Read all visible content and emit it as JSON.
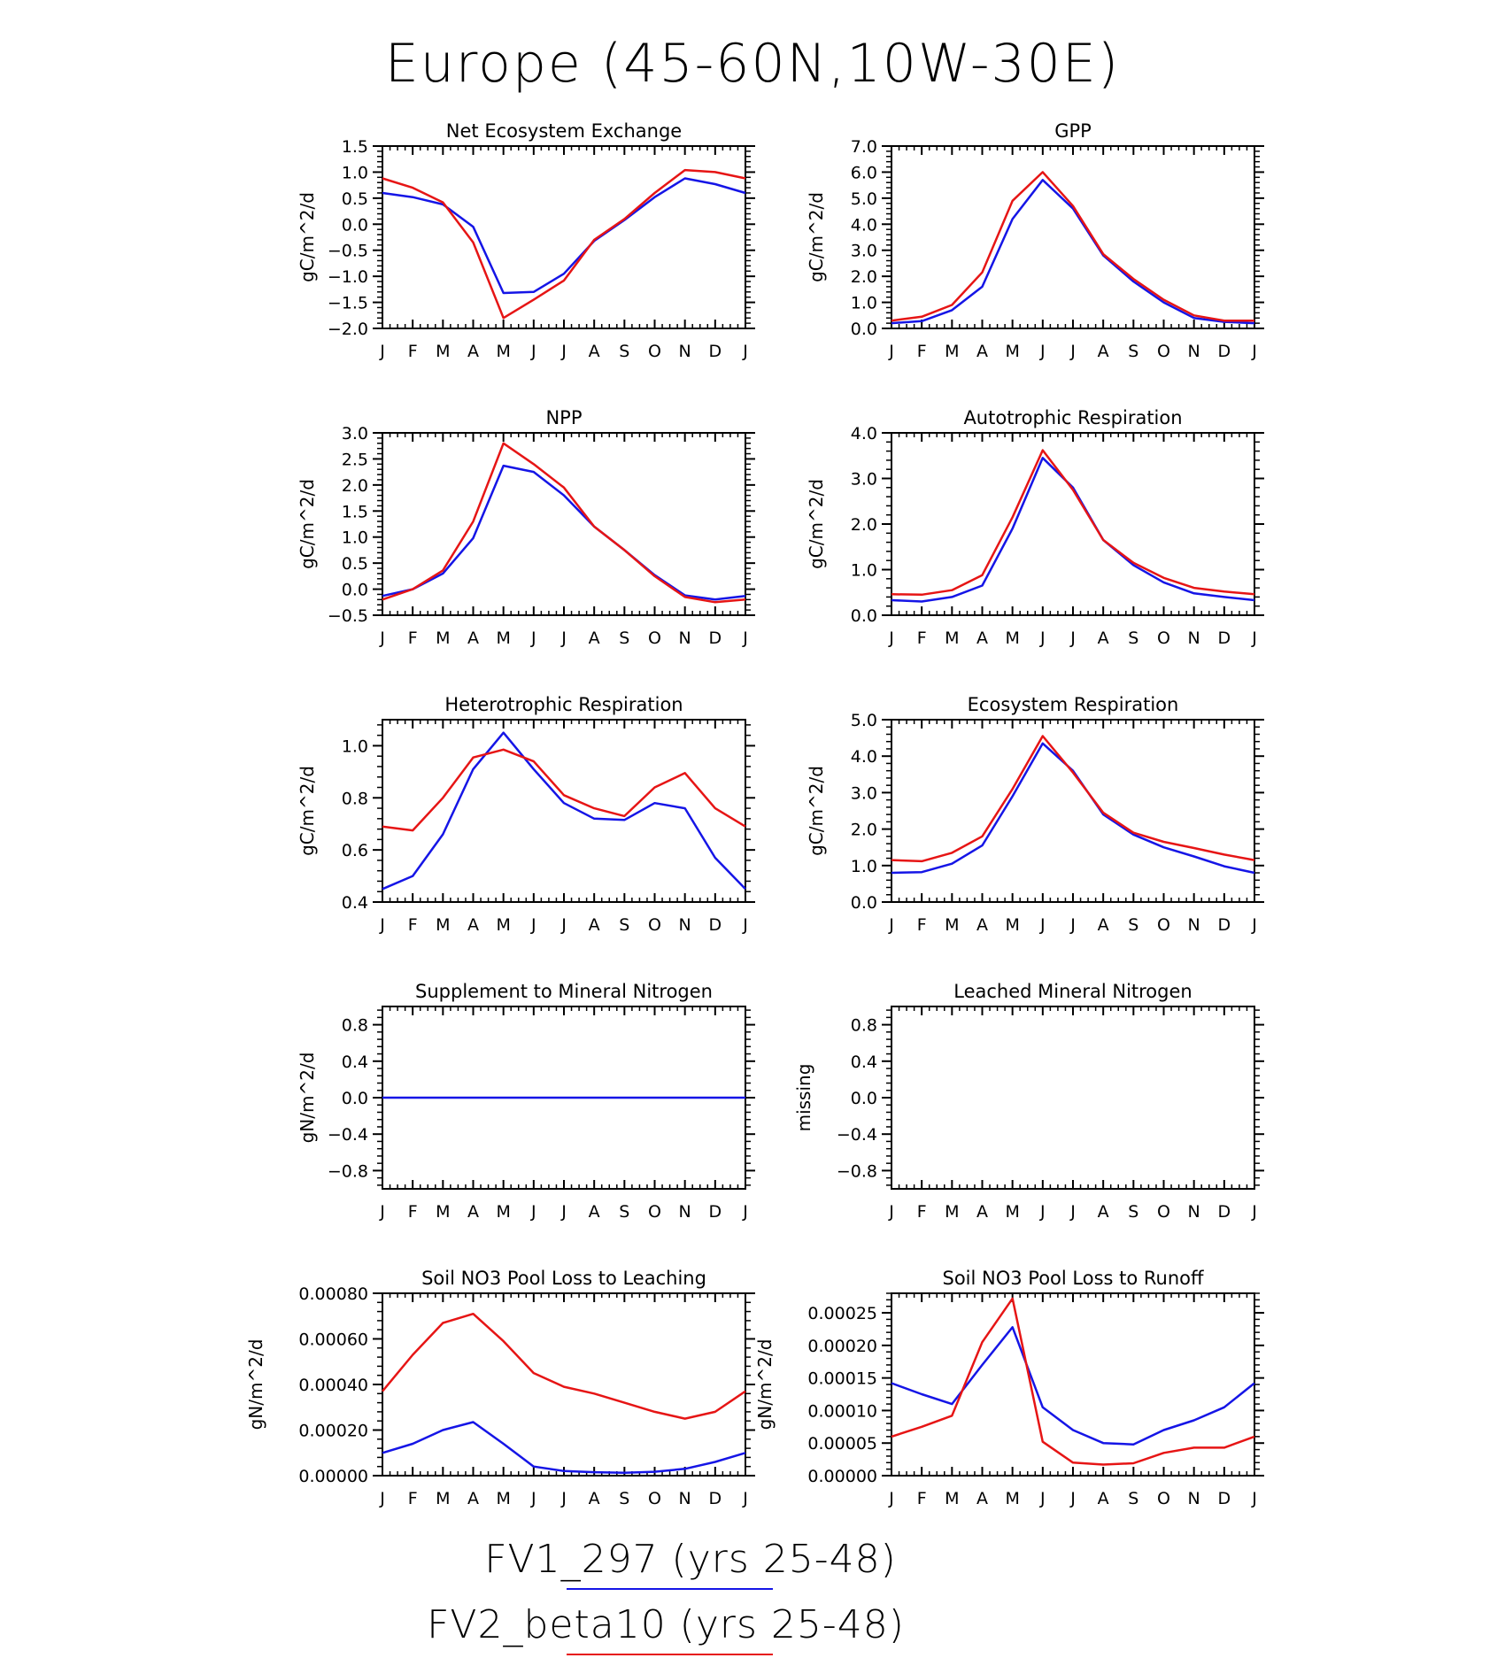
{
  "title": "Europe (45-60N,10W-30E)",
  "colors": {
    "series1": "#1515e6",
    "series2": "#e61515",
    "axis": "#000000"
  },
  "legend": [
    {
      "label": "FV1_297 (yrs 25-48)",
      "color": "#1515e6"
    },
    {
      "label": "FV2_beta10 (yrs 25-48)",
      "color": "#e61515"
    }
  ],
  "chart_data": [
    {
      "type": "line",
      "title": "Net Ecosystem Exchange",
      "ylabel": "gC/m^2/d",
      "categories": [
        "J",
        "F",
        "M",
        "A",
        "M",
        "J",
        "J",
        "A",
        "S",
        "O",
        "N",
        "D",
        "J"
      ],
      "ylim": [
        -2.0,
        1.5
      ],
      "yticks": [
        -2.0,
        -1.5,
        -1.0,
        -0.5,
        0.0,
        0.5,
        1.0,
        1.5
      ],
      "ytick_labels": [
        "−2.0",
        "−1.5",
        "−1.0",
        "−0.5",
        "0.0",
        "0.5",
        "1.0",
        "1.5"
      ],
      "series": [
        {
          "name": "FV1_297 (yrs 25-48)",
          "values": [
            0.6,
            0.52,
            0.38,
            -0.05,
            -1.32,
            -1.3,
            -0.95,
            -0.32,
            0.08,
            0.52,
            0.88,
            0.77,
            0.6
          ]
        },
        {
          "name": "FV2_beta10 (yrs 25-48)",
          "values": [
            0.88,
            0.7,
            0.42,
            -0.35,
            -1.8,
            -1.45,
            -1.08,
            -0.3,
            0.1,
            0.6,
            1.04,
            1.0,
            0.88
          ]
        }
      ]
    },
    {
      "type": "line",
      "title": "GPP",
      "ylabel": "gC/m^2/d",
      "categories": [
        "J",
        "F",
        "M",
        "A",
        "M",
        "J",
        "J",
        "A",
        "S",
        "O",
        "N",
        "D",
        "J"
      ],
      "ylim": [
        0.0,
        7.0
      ],
      "yticks": [
        0,
        1,
        2,
        3,
        4,
        5,
        6,
        7
      ],
      "ytick_labels": [
        "0.0",
        "1.0",
        "2.0",
        "3.0",
        "4.0",
        "5.0",
        "6.0",
        "7.0"
      ],
      "series": [
        {
          "name": "FV1_297 (yrs 25-48)",
          "values": [
            0.2,
            0.28,
            0.7,
            1.6,
            4.2,
            5.7,
            4.6,
            2.8,
            1.8,
            1.0,
            0.4,
            0.25,
            0.2
          ]
        },
        {
          "name": "FV2_beta10 (yrs 25-48)",
          "values": [
            0.3,
            0.45,
            0.9,
            2.15,
            4.9,
            6.0,
            4.7,
            2.85,
            1.9,
            1.1,
            0.5,
            0.3,
            0.3
          ]
        }
      ]
    },
    {
      "type": "line",
      "title": "NPP",
      "ylabel": "gC/m^2/d",
      "categories": [
        "J",
        "F",
        "M",
        "A",
        "M",
        "J",
        "J",
        "A",
        "S",
        "O",
        "N",
        "D",
        "J"
      ],
      "ylim": [
        -0.5,
        3.0
      ],
      "yticks": [
        -0.5,
        0,
        0.5,
        1,
        1.5,
        2,
        2.5,
        3
      ],
      "ytick_labels": [
        "−0.5",
        "0.0",
        "0.5",
        "1.0",
        "1.5",
        "2.0",
        "2.5",
        "3.0"
      ],
      "series": [
        {
          "name": "FV1_297 (yrs 25-48)",
          "values": [
            -0.13,
            0.0,
            0.3,
            0.98,
            2.37,
            2.25,
            1.8,
            1.2,
            0.75,
            0.27,
            -0.12,
            -0.2,
            -0.13
          ]
        },
        {
          "name": "FV2_beta10 (yrs 25-48)",
          "values": [
            -0.2,
            0.0,
            0.36,
            1.3,
            2.8,
            2.4,
            1.95,
            1.2,
            0.75,
            0.25,
            -0.15,
            -0.25,
            -0.2
          ]
        }
      ]
    },
    {
      "type": "line",
      "title": "Autotrophic Respiration",
      "ylabel": "gC/m^2/d",
      "categories": [
        "J",
        "F",
        "M",
        "A",
        "M",
        "J",
        "J",
        "A",
        "S",
        "O",
        "N",
        "D",
        "J"
      ],
      "ylim": [
        0.0,
        4.0
      ],
      "yticks": [
        0,
        1,
        2,
        3,
        4
      ],
      "ytick_labels": [
        "0.0",
        "1.0",
        "2.0",
        "3.0",
        "4.0"
      ],
      "series": [
        {
          "name": "FV1_297 (yrs 25-48)",
          "values": [
            0.33,
            0.3,
            0.4,
            0.65,
            1.9,
            3.45,
            2.8,
            1.65,
            1.1,
            0.72,
            0.48,
            0.4,
            0.33
          ]
        },
        {
          "name": "FV2_beta10 (yrs 25-48)",
          "values": [
            0.46,
            0.45,
            0.55,
            0.88,
            2.15,
            3.62,
            2.75,
            1.65,
            1.15,
            0.82,
            0.6,
            0.52,
            0.46
          ]
        }
      ]
    },
    {
      "type": "line",
      "title": "Heterotrophic Respiration",
      "ylabel": "gC/m^2/d",
      "categories": [
        "J",
        "F",
        "M",
        "A",
        "M",
        "J",
        "J",
        "A",
        "S",
        "O",
        "N",
        "D",
        "J"
      ],
      "ylim": [
        0.4,
        1.1
      ],
      "yticks": [
        0.4,
        0.6,
        0.8,
        1.0
      ],
      "ytick_labels": [
        "0.4",
        "0.6",
        "0.8",
        "1.0"
      ],
      "series": [
        {
          "name": "FV1_297 (yrs 25-48)",
          "values": [
            0.45,
            0.5,
            0.66,
            0.91,
            1.05,
            0.91,
            0.78,
            0.72,
            0.715,
            0.78,
            0.76,
            0.57,
            0.45
          ]
        },
        {
          "name": "FV2_beta10 (yrs 25-48)",
          "values": [
            0.69,
            0.675,
            0.8,
            0.955,
            0.985,
            0.94,
            0.81,
            0.76,
            0.73,
            0.84,
            0.895,
            0.76,
            0.69
          ]
        }
      ]
    },
    {
      "type": "line",
      "title": "Ecosystem Respiration",
      "ylabel": "gC/m^2/d",
      "categories": [
        "J",
        "F",
        "M",
        "A",
        "M",
        "J",
        "J",
        "A",
        "S",
        "O",
        "N",
        "D",
        "J"
      ],
      "ylim": [
        0.0,
        5.0
      ],
      "yticks": [
        0,
        1,
        2,
        3,
        4,
        5
      ],
      "ytick_labels": [
        "0.0",
        "1.0",
        "2.0",
        "3.0",
        "4.0",
        "5.0"
      ],
      "series": [
        {
          "name": "FV1_297 (yrs 25-48)",
          "values": [
            0.8,
            0.82,
            1.05,
            1.55,
            2.9,
            4.35,
            3.6,
            2.4,
            1.85,
            1.5,
            1.25,
            0.98,
            0.8
          ]
        },
        {
          "name": "FV2_beta10 (yrs 25-48)",
          "values": [
            1.15,
            1.12,
            1.35,
            1.8,
            3.1,
            4.55,
            3.55,
            2.45,
            1.9,
            1.65,
            1.48,
            1.3,
            1.15
          ]
        }
      ]
    },
    {
      "type": "line",
      "title": "Supplement to Mineral Nitrogen",
      "ylabel": "gN/m^2/d",
      "categories": [
        "J",
        "F",
        "M",
        "A",
        "M",
        "J",
        "J",
        "A",
        "S",
        "O",
        "N",
        "D",
        "J"
      ],
      "ylim": [
        -1.0,
        1.0
      ],
      "yticks": [
        -0.8,
        -0.4,
        0,
        0.4,
        0.8
      ],
      "ytick_labels": [
        "−0.8",
        "−0.4",
        "0.0",
        "0.4",
        "0.8"
      ],
      "series": [
        {
          "name": "FV1_297 (yrs 25-48)",
          "values": [
            0,
            0,
            0,
            0,
            0,
            0,
            0,
            0,
            0,
            0,
            0,
            0,
            0
          ]
        }
      ]
    },
    {
      "type": "line",
      "title": "Leached Mineral Nitrogen",
      "ylabel": "missing",
      "categories": [
        "J",
        "F",
        "M",
        "A",
        "M",
        "J",
        "J",
        "A",
        "S",
        "O",
        "N",
        "D",
        "J"
      ],
      "ylim": [
        -1.0,
        1.0
      ],
      "yticks": [
        -0.8,
        -0.4,
        0,
        0.4,
        0.8
      ],
      "ytick_labels": [
        "−0.8",
        "−0.4",
        "0.0",
        "0.4",
        "0.8"
      ],
      "series": []
    },
    {
      "type": "line",
      "title": "Soil NO3 Pool Loss to Leaching",
      "ylabel": "gN/m^2/d",
      "categories": [
        "J",
        "F",
        "M",
        "A",
        "M",
        "J",
        "J",
        "A",
        "S",
        "O",
        "N",
        "D",
        "J"
      ],
      "ylim": [
        0.0,
        0.0008
      ],
      "yticks": [
        0,
        0.0002,
        0.0004,
        0.0006,
        0.0008
      ],
      "ytick_labels": [
        "0.00000",
        "0.00020",
        "0.00040",
        "0.00060",
        "0.00080"
      ],
      "series": [
        {
          "name": "FV1_297 (yrs 25-48)",
          "values": [
            0.0001,
            0.00014,
            0.0002,
            0.000235,
            0.00014,
            4e-05,
            2e-05,
            1.5e-05,
            1.3e-05,
            1.7e-05,
            3e-05,
            6e-05,
            0.0001
          ]
        },
        {
          "name": "FV2_beta10 (yrs 25-48)",
          "values": [
            0.00037,
            0.00053,
            0.00067,
            0.00071,
            0.00059,
            0.00045,
            0.00039,
            0.00036,
            0.00032,
            0.00028,
            0.00025,
            0.00028,
            0.00037
          ]
        }
      ]
    },
    {
      "type": "line",
      "title": "Soil NO3 Pool Loss to Runoff",
      "ylabel": "gN/m^2/d",
      "categories": [
        "J",
        "F",
        "M",
        "A",
        "M",
        "J",
        "J",
        "A",
        "S",
        "O",
        "N",
        "D",
        "J"
      ],
      "ylim": [
        0.0,
        0.00028
      ],
      "yticks": [
        0,
        5e-05,
        0.0001,
        0.00015,
        0.0002,
        0.00025
      ],
      "ytick_labels": [
        "0.00000",
        "0.00005",
        "0.00010",
        "0.00015",
        "0.00020",
        "0.00025"
      ],
      "series": [
        {
          "name": "FV1_297 (yrs 25-48)",
          "values": [
            0.000142,
            0.000125,
            0.00011,
            0.00017,
            0.000228,
            0.000105,
            7e-05,
            5e-05,
            4.8e-05,
            7e-05,
            8.5e-05,
            0.000105,
            0.000142
          ]
        },
        {
          "name": "FV2_beta10 (yrs 25-48)",
          "values": [
            6e-05,
            7.5e-05,
            9.2e-05,
            0.000205,
            0.000272,
            5.2e-05,
            2e-05,
            1.7e-05,
            1.9e-05,
            3.5e-05,
            4.3e-05,
            4.3e-05,
            6e-05
          ]
        }
      ]
    }
  ]
}
